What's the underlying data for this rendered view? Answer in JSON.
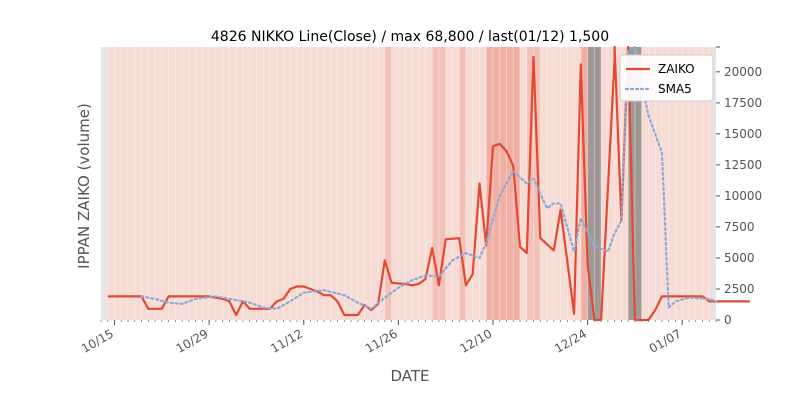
{
  "chart_data": {
    "type": "line",
    "title": "4826 NIKKO Line(Close) / max 68,800 / last(01/12) 1,500",
    "xlabel": "DATE",
    "ylabel": "IPPAN ZAIKO (volume)",
    "y_range": [
      0,
      22000
    ],
    "y_ticks": [
      0,
      2500,
      5000,
      7500,
      10000,
      12500,
      15000,
      17500,
      20000,
      22000
    ],
    "y_tick_labels": [
      "0",
      "2500",
      "5000",
      "7500",
      "10000",
      "12500",
      "15000",
      "17500",
      "20000",
      ""
    ],
    "x_range": [
      "2018-10-13",
      "2019-01-12"
    ],
    "x_ticks": [
      "2018-10-15",
      "2018-10-29",
      "2018-11-12",
      "2018-11-26",
      "2018-12-10",
      "2018-12-24",
      "2019-01-07"
    ],
    "x_tick_labels": [
      "10/15",
      "10/29",
      "11/12",
      "11/26",
      "12/10",
      "12/24",
      "01/07"
    ],
    "grid": false,
    "legend_position": "top-right",
    "series": [
      {
        "name": "ZAIKO",
        "color": "#e24a33",
        "style": "solid",
        "points": [
          [
            "2018-10-14",
            1900
          ],
          [
            "2018-10-19",
            1900
          ],
          [
            "2018-10-20",
            900
          ],
          [
            "2018-10-22",
            900
          ],
          [
            "2018-10-23",
            1900
          ],
          [
            "2018-10-29",
            1900
          ],
          [
            "2018-10-31",
            1700
          ],
          [
            "2018-11-01",
            1500
          ],
          [
            "2018-11-02",
            400
          ],
          [
            "2018-11-03",
            1500
          ],
          [
            "2018-11-04",
            900
          ],
          [
            "2018-11-06",
            900
          ],
          [
            "2018-11-07",
            900
          ],
          [
            "2018-11-08",
            1500
          ],
          [
            "2018-11-09",
            1700
          ],
          [
            "2018-11-10",
            2500
          ],
          [
            "2018-11-11",
            2700
          ],
          [
            "2018-11-12",
            2700
          ],
          [
            "2018-11-14",
            2300
          ],
          [
            "2018-11-15",
            2000
          ],
          [
            "2018-11-16",
            2000
          ],
          [
            "2018-11-17",
            1500
          ],
          [
            "2018-11-18",
            400
          ],
          [
            "2018-11-20",
            400
          ],
          [
            "2018-11-21",
            1200
          ],
          [
            "2018-11-22",
            800
          ],
          [
            "2018-11-23",
            1300
          ],
          [
            "2018-11-24",
            4800
          ],
          [
            "2018-11-25",
            3000
          ],
          [
            "2018-11-27",
            2900
          ],
          [
            "2018-11-28",
            2800
          ],
          [
            "2018-11-29",
            2900
          ],
          [
            "2018-11-30",
            3300
          ],
          [
            "2018-12-01",
            5800
          ],
          [
            "2018-12-02",
            2800
          ],
          [
            "2018-12-03",
            6500
          ],
          [
            "2018-12-05",
            6600
          ],
          [
            "2018-12-06",
            2800
          ],
          [
            "2018-12-07",
            3700
          ],
          [
            "2018-12-08",
            11000
          ],
          [
            "2018-12-09",
            6000
          ],
          [
            "2018-12-10",
            14000
          ],
          [
            "2018-12-11",
            14200
          ],
          [
            "2018-12-12",
            13600
          ],
          [
            "2018-12-13",
            12400
          ],
          [
            "2018-12-14",
            5900
          ],
          [
            "2018-12-15",
            5400
          ],
          [
            "2018-12-16",
            21200
          ],
          [
            "2018-12-17",
            6600
          ],
          [
            "2018-12-19",
            5600
          ],
          [
            "2018-12-20",
            8900
          ],
          [
            "2018-12-22",
            500
          ],
          [
            "2018-12-23",
            20600
          ],
          [
            "2018-12-24",
            4500
          ],
          [
            "2018-12-25",
            0
          ],
          [
            "2018-12-26",
            0
          ],
          [
            "2018-12-28",
            21000
          ],
          [
            "2018-12-28",
            22000
          ],
          [
            "2018-12-29",
            8000
          ],
          [
            "2018-12-30",
            22000
          ],
          [
            "2018-12-31",
            0
          ],
          [
            "2019-01-02",
            0
          ],
          [
            "2019-01-03",
            800
          ],
          [
            "2019-01-04",
            1900
          ],
          [
            "2019-01-10",
            1900
          ],
          [
            "2019-01-11",
            1500
          ],
          [
            "2019-01-17",
            1500
          ]
        ]
      },
      {
        "name": "SMA5",
        "color": "#8eaad4",
        "style": "dotted",
        "points": [
          [
            "2018-10-19",
            1900
          ],
          [
            "2018-10-21",
            1700
          ],
          [
            "2018-10-23",
            1400
          ],
          [
            "2018-10-25",
            1300
          ],
          [
            "2018-10-27",
            1700
          ],
          [
            "2018-10-30",
            1900
          ],
          [
            "2018-11-01",
            1700
          ],
          [
            "2018-11-04",
            1400
          ],
          [
            "2018-11-06",
            1000
          ],
          [
            "2018-11-08",
            900
          ],
          [
            "2018-11-10",
            1500
          ],
          [
            "2018-11-12",
            2200
          ],
          [
            "2018-11-15",
            2400
          ],
          [
            "2018-11-18",
            2000
          ],
          [
            "2018-11-20",
            1400
          ],
          [
            "2018-11-22",
            900
          ],
          [
            "2018-11-24",
            1800
          ],
          [
            "2018-11-26",
            2600
          ],
          [
            "2018-11-28",
            3200
          ],
          [
            "2018-11-30",
            3600
          ],
          [
            "2018-12-02",
            3500
          ],
          [
            "2018-12-04",
            4800
          ],
          [
            "2018-12-06",
            5400
          ],
          [
            "2018-12-08",
            5000
          ],
          [
            "2018-12-09",
            6200
          ],
          [
            "2018-12-11",
            10000
          ],
          [
            "2018-12-13",
            12000
          ],
          [
            "2018-12-15",
            11000
          ],
          [
            "2018-12-16",
            11400
          ],
          [
            "2018-12-18",
            9000
          ],
          [
            "2018-12-19",
            9400
          ],
          [
            "2018-12-20",
            9400
          ],
          [
            "2018-12-22",
            5500
          ],
          [
            "2018-12-23",
            8200
          ],
          [
            "2018-12-25",
            6000
          ],
          [
            "2018-12-27",
            5500
          ],
          [
            "2018-12-28",
            7000
          ],
          [
            "2018-12-29",
            8000
          ],
          [
            "2018-12-30",
            21700
          ],
          [
            "2018-12-31",
            22000
          ],
          [
            "2019-01-02",
            16500
          ],
          [
            "2019-01-03",
            15000
          ],
          [
            "2019-01-04",
            13500
          ],
          [
            "2019-01-05",
            1000
          ],
          [
            "2019-01-06",
            1500
          ],
          [
            "2019-01-08",
            1800
          ],
          [
            "2019-01-11",
            1700
          ],
          [
            "2019-01-12",
            1500
          ]
        ]
      }
    ],
    "background_bands": [
      {
        "from": "2018-11-24",
        "to": "2018-11-25",
        "level": 2
      },
      {
        "from": "2018-12-01",
        "to": "2018-12-03",
        "level": 2
      },
      {
        "from": "2018-12-05",
        "to": "2018-12-06",
        "level": 2
      },
      {
        "from": "2018-12-09",
        "to": "2018-12-14",
        "level": 3
      },
      {
        "from": "2018-12-15",
        "to": "2018-12-17",
        "level": 2
      },
      {
        "from": "2018-12-23",
        "to": "2018-12-24",
        "level": 3
      },
      {
        "from": "2018-12-24",
        "to": "2018-12-26",
        "level": 5
      },
      {
        "from": "2018-12-30",
        "to": "2019-01-01",
        "level": 5
      }
    ]
  }
}
